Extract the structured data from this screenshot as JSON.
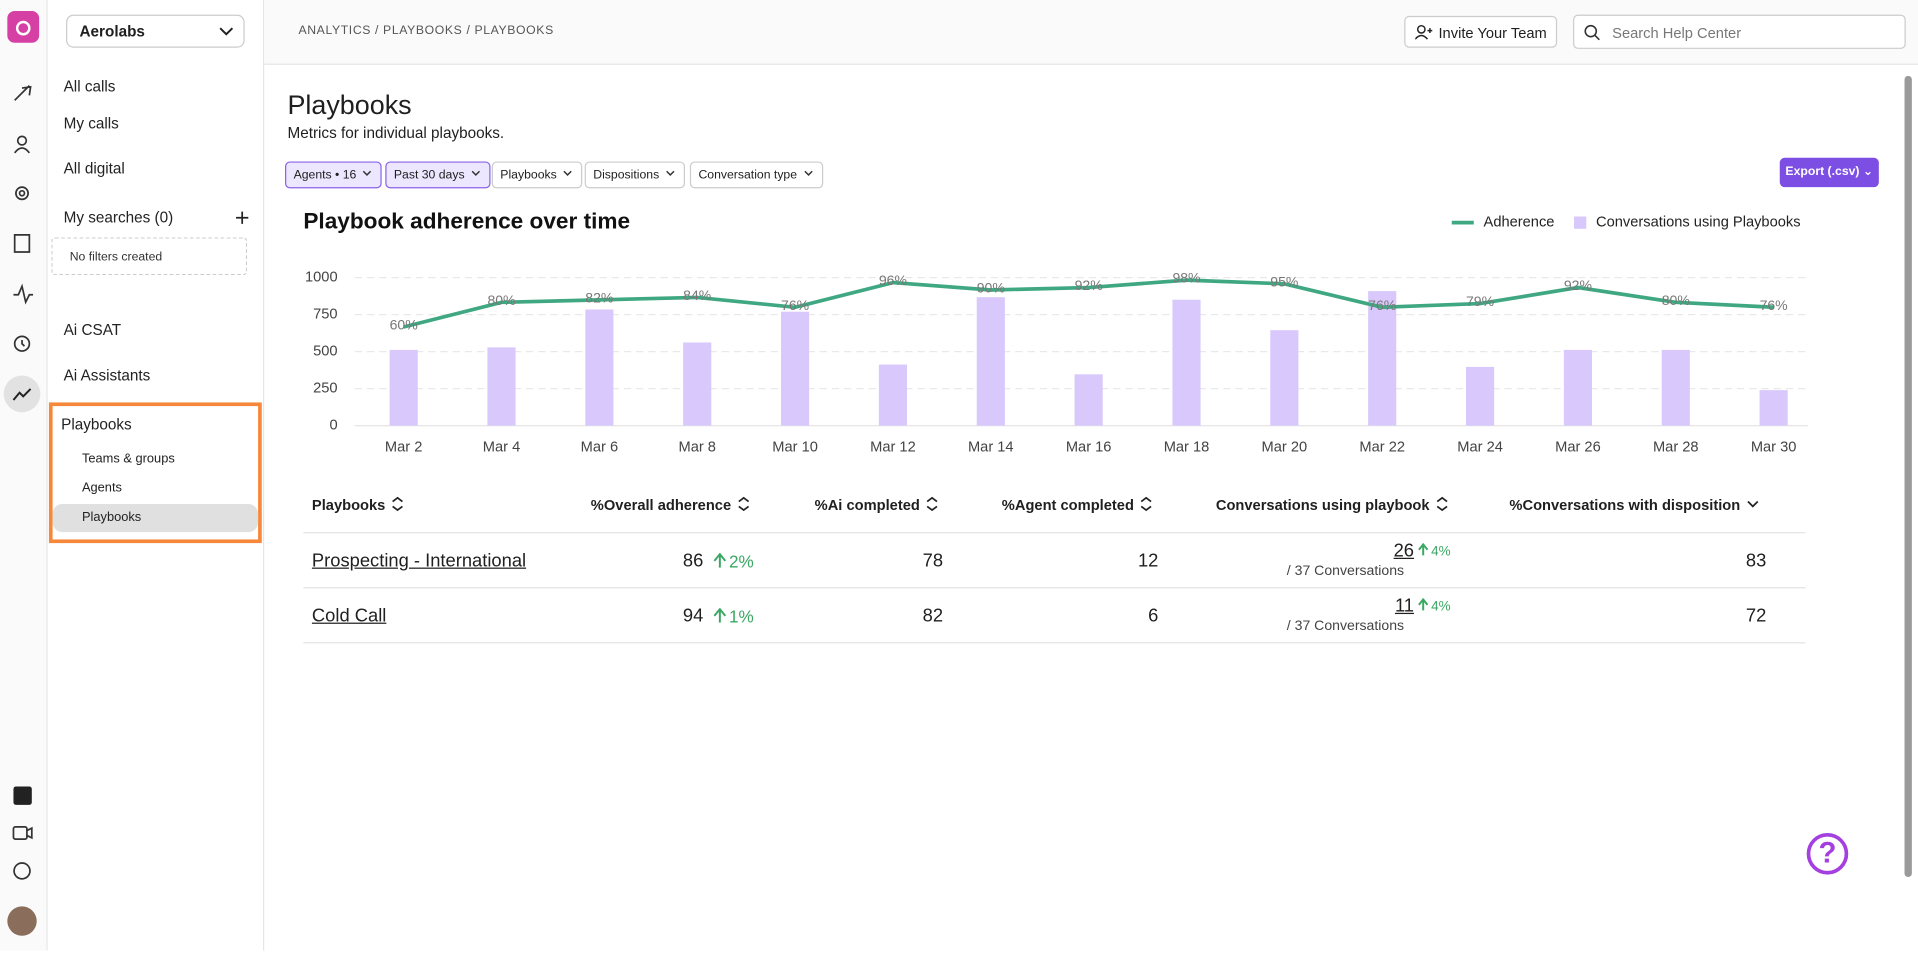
{
  "workspace": "Aerolabs",
  "breadcrumb": "ANALYTICS / PLAYBOOKS / PLAYBOOKS",
  "invite": "Invite Your Team",
  "search_placeholder": "Search Help Center",
  "nav": {
    "items": [
      "All calls",
      "My calls",
      "All digital"
    ],
    "searches": "My searches (0)",
    "no_filters": "No filters created",
    "items2": [
      "Ai CSAT",
      "Ai Assistants"
    ],
    "section": "Playbooks",
    "sub": [
      "Teams & groups",
      "Agents",
      "Playbooks"
    ]
  },
  "page": {
    "title": "Playbooks",
    "subtitle": "Metrics for individual playbooks.",
    "filters": [
      "Agents • 16",
      "Past 30 days",
      "Playbooks",
      "Dispositions",
      "Conversation type"
    ],
    "export": "Export (.csv)"
  },
  "chart_data": {
    "type": "bar",
    "title": "Playbook adherence over time",
    "categories": [
      "Mar 2",
      "Mar 4",
      "Mar 6",
      "Mar 8",
      "Mar 10",
      "Mar 12",
      "Mar 14",
      "Mar 16",
      "Mar 18",
      "Mar 20",
      "Mar 22",
      "Mar 24",
      "Mar 26",
      "Mar 28",
      "Mar 30"
    ],
    "series": [
      {
        "name": "Adherence",
        "type": "line",
        "color": "#3fa882",
        "axis": "y2",
        "values": [
          60,
          80,
          82,
          84,
          76,
          96,
          90,
          92,
          98,
          95,
          76,
          79,
          92,
          80,
          76
        ],
        "value_labels": [
          "60%",
          "80%",
          "82%",
          "84%",
          "76%",
          "96%",
          "90%",
          "92%",
          "98%",
          "95%",
          "76%",
          "79%",
          "92%",
          "80%",
          "76%"
        ]
      },
      {
        "name": "Conversations using Playbooks",
        "type": "bar",
        "color": "#d8c8fb",
        "values": [
          512,
          529,
          785,
          562,
          770,
          413,
          868,
          347,
          851,
          645,
          909,
          397,
          512,
          512,
          240
        ]
      }
    ],
    "ylim": [
      0,
      1000
    ],
    "yticks": [
      0,
      250,
      500,
      750,
      1000
    ],
    "y2lim": [
      -20,
      100
    ],
    "grid": true,
    "legend": "top-right"
  },
  "table": {
    "headers": [
      "Playbooks",
      "%Overall adherence",
      "%Ai completed",
      "%Agent completed",
      "Conversations using playbook",
      "%Conversations with disposition"
    ],
    "rows": [
      {
        "name": "Prospecting - International",
        "adherence": 86,
        "adherence_change": "2%",
        "ai": 78,
        "agent": 12,
        "conversations": 26,
        "conversations_change": "4%",
        "conversations_total": "/ 37 Conversations",
        "disposition": 83
      },
      {
        "name": "Cold Call",
        "adherence": 94,
        "adherence_change": "1%",
        "ai": 82,
        "agent": 6,
        "conversations": 11,
        "conversations_change": "4%",
        "conversations_total": "/ 37 Conversations",
        "disposition": 72
      }
    ]
  },
  "help": "?"
}
